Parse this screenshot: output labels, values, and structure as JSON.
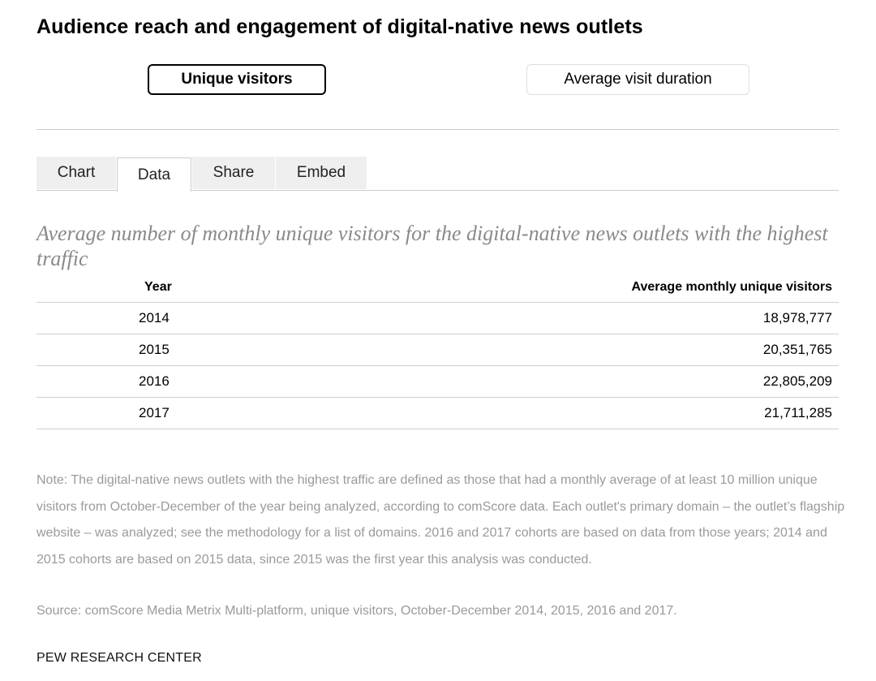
{
  "title": "Audience reach and engagement of digital-native news outlets",
  "toggles": {
    "unique_visitors": "Unique visitors",
    "avg_visit_duration": "Average visit duration"
  },
  "tabs": [
    "Chart",
    "Data",
    "Share",
    "Embed"
  ],
  "active_tab": "Data",
  "subtitle": "Average number of monthly unique visitors for the digital-native news outlets with the highest traffic",
  "table": {
    "headers": [
      "Year",
      "Average monthly unique visitors"
    ],
    "rows": [
      [
        "2014",
        "18,978,777"
      ],
      [
        "2015",
        "20,351,765"
      ],
      [
        "2016",
        "22,805,209"
      ],
      [
        "2017",
        "21,711,285"
      ]
    ]
  },
  "note": "Note: The digital-native news outlets with the highest traffic are defined as those that had a monthly average of at least 10 million unique visitors from October-December of the year being analyzed, according to comScore data. Each outlet's primary domain – the outlet’s flagship website – was analyzed; see the methodology for a list of domains. 2016 and 2017 cohorts are based on data from those years; 2014 and 2015 cohorts are based on 2015 data, since 2015 was the first year this analysis was conducted.",
  "source": "Source: comScore Media Metrix Multi-platform, unique visitors, October-December 2014, 2015, 2016 and 2017.",
  "footer": "PEW RESEARCH CENTER",
  "colors": {
    "muted_text": "#9a9a9a",
    "tab_inactive_bg": "#efefef",
    "rule": "#cccccc"
  }
}
